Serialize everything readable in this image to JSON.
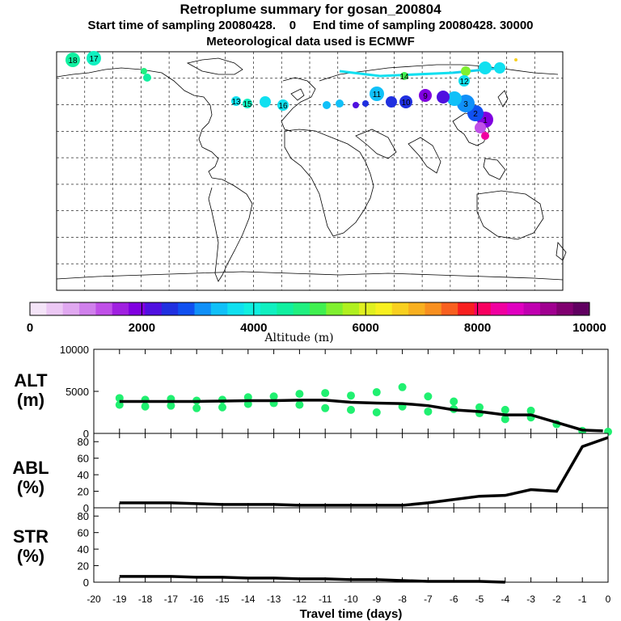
{
  "header": {
    "line1": "Retroplume summary for gosan_200804",
    "line2": "Start time of sampling 20080428.    0     End time of sampling 20080428. 30000",
    "line3": "Meteorological data used is ECMWF"
  },
  "colorbar": {
    "label": "Altitude (m)",
    "ticks": [
      "0",
      "2000",
      "4000",
      "6000",
      "8000",
      "10000"
    ],
    "colors": [
      "#f4e4f8",
      "#ecc8f4",
      "#e0a8f0",
      "#d080ec",
      "#c050e8",
      "#a020e0",
      "#8000e0",
      "#5010e0",
      "#2030e0",
      "#1050f0",
      "#1090f8",
      "#10c0f8",
      "#10e0f0",
      "#10f0e0",
      "#10f0c0",
      "#10f0a0",
      "#20f080",
      "#40f050",
      "#80f030",
      "#b0f020",
      "#e0f020",
      "#f8f020",
      "#f8d020",
      "#f8b020",
      "#f89020",
      "#f86020",
      "#f82020",
      "#f80060",
      "#f000a0",
      "#e000c0",
      "#c000b0",
      "#a00090",
      "#800070",
      "#600060"
    ]
  },
  "map": {
    "point_labels": [
      "18",
      "17",
      "11",
      "10",
      "9",
      "3",
      "2",
      "1",
      "12",
      "16",
      "15",
      "14",
      "13"
    ]
  },
  "chart_data": [
    {
      "type": "line",
      "name": "ALT",
      "ylabel_1": "ALT",
      "ylabel_2": "(m)",
      "ylim": [
        0,
        10000
      ],
      "yticks": [
        "0",
        "5000",
        "10000"
      ],
      "x": [
        -19,
        -18,
        -17,
        -16,
        -15,
        -14,
        -13,
        -12,
        -11,
        -10,
        -9,
        -8,
        -7,
        -6,
        -5,
        -4,
        -3,
        -2,
        -1,
        -0.2
      ],
      "values": [
        3800,
        3800,
        3800,
        3800,
        3850,
        3900,
        3900,
        3950,
        3950,
        3700,
        3600,
        3550,
        3300,
        2800,
        2600,
        2200,
        2200,
        1300,
        400,
        300
      ],
      "scatter": [
        {
          "x": -19,
          "y": 4200
        },
        {
          "x": -19,
          "y": 3400
        },
        {
          "x": -18,
          "y": 4000
        },
        {
          "x": -18,
          "y": 3200
        },
        {
          "x": -17,
          "y": 4100
        },
        {
          "x": -17,
          "y": 3300
        },
        {
          "x": -16,
          "y": 3900
        },
        {
          "x": -16,
          "y": 3000
        },
        {
          "x": -15,
          "y": 4000
        },
        {
          "x": -15,
          "y": 3100
        },
        {
          "x": -14,
          "y": 4300
        },
        {
          "x": -14,
          "y": 3500
        },
        {
          "x": -13,
          "y": 4400
        },
        {
          "x": -13,
          "y": 3600
        },
        {
          "x": -12,
          "y": 4700
        },
        {
          "x": -12,
          "y": 3400
        },
        {
          "x": -11,
          "y": 4800
        },
        {
          "x": -11,
          "y": 3000
        },
        {
          "x": -10,
          "y": 4500
        },
        {
          "x": -10,
          "y": 2800
        },
        {
          "x": -9,
          "y": 4900
        },
        {
          "x": -9,
          "y": 2500
        },
        {
          "x": -8,
          "y": 5500
        },
        {
          "x": -8,
          "y": 3200
        },
        {
          "x": -7,
          "y": 4400
        },
        {
          "x": -7,
          "y": 2600
        },
        {
          "x": -6,
          "y": 3800
        },
        {
          "x": -6,
          "y": 2900
        },
        {
          "x": -5,
          "y": 3100
        },
        {
          "x": -5,
          "y": 2400
        },
        {
          "x": -4,
          "y": 2800
        },
        {
          "x": -4,
          "y": 1700
        },
        {
          "x": -3,
          "y": 2700
        },
        {
          "x": -3,
          "y": 1900
        },
        {
          "x": -2,
          "y": 1100
        },
        {
          "x": -1,
          "y": 300
        },
        {
          "x": 0,
          "y": 200
        }
      ]
    },
    {
      "type": "line",
      "name": "ABL",
      "ylabel_1": "ABL",
      "ylabel_2": "(%)",
      "ylim": [
        0,
        90
      ],
      "yticks": [
        "0",
        "20",
        "40",
        "60",
        "80"
      ],
      "x": [
        -19,
        -18,
        -17,
        -16,
        -15,
        -14,
        -13,
        -12,
        -11,
        -10,
        -9,
        -8,
        -7,
        -6,
        -5,
        -4,
        -3,
        -2,
        -1,
        0
      ],
      "values": [
        6,
        6,
        6,
        5,
        4,
        4,
        4,
        3,
        3,
        3,
        3,
        3,
        6,
        10,
        14,
        15,
        22,
        20,
        74,
        85
      ]
    },
    {
      "type": "line",
      "name": "STR",
      "ylabel_1": "STR",
      "ylabel_2": "(%)",
      "ylim": [
        0,
        90
      ],
      "yticks": [
        "0",
        "20",
        "40",
        "60",
        "80"
      ],
      "x": [
        -19,
        -18,
        -17,
        -16,
        -15,
        -14,
        -13,
        -12,
        -11,
        -10,
        -9,
        -8,
        -7,
        -6,
        -5,
        -4
      ],
      "values": [
        7,
        7,
        7,
        6,
        6,
        5,
        5,
        4,
        4,
        3,
        3,
        2,
        1,
        1,
        1,
        0
      ]
    }
  ],
  "xaxis": {
    "label": "Travel time (days)",
    "ticks": [
      "-20",
      "-19",
      "-18",
      "-17",
      "-16",
      "-15",
      "-14",
      "-13",
      "-12",
      "-11",
      "-10",
      "-9",
      "-8",
      "-7",
      "-6",
      "-5",
      "-4",
      "-3",
      "-2",
      "-1",
      "0"
    ]
  }
}
